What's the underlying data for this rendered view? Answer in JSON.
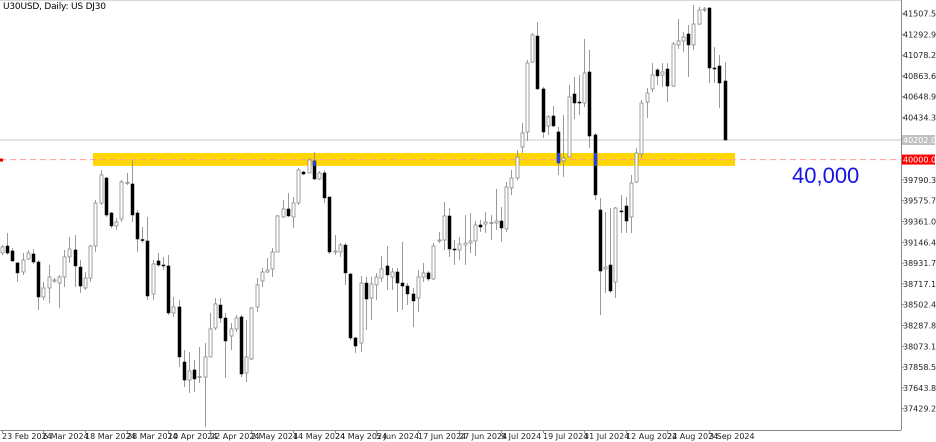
{
  "header": {
    "title": "U30USD, Daily:  US DJ30"
  },
  "annotation": {
    "text": "40,000",
    "color": "#1414e6"
  },
  "colors": {
    "band": "#ffd700",
    "bull_body": "#ffffff",
    "bear_body": "#000000",
    "bear_in_band": "#1e3cff",
    "level_line": "#ff9a9a",
    "current_line": "#c8c8c8",
    "level_label_bg": "#ff0000",
    "current_label_bg": "#c0c0c0"
  },
  "chart_data": {
    "type": "candlestick",
    "symbol": "U30USD",
    "timeframe": "Daily",
    "ylim": [
      37240,
      41620
    ],
    "y_tick_labels": [
      "41507.58",
      "41292.93",
      "41078.28",
      "40863.63",
      "40648.98",
      "40434.33",
      "39790.38",
      "39575.73",
      "39361.08",
      "39146.43",
      "38931.78",
      "38717.13",
      "38502.48",
      "38287.83",
      "38073.18",
      "37858.53",
      "37643.88",
      "37429.23"
    ],
    "x_tick_labels": [
      "23 Feb 2024",
      "6 Mar 2024",
      "18 Mar 2024",
      "28 Mar 2024",
      "10 Apr 2024",
      "22 Apr 2024",
      "2 May 2024",
      "14 May 2024",
      "24 May 2024",
      "5 Jun 2024",
      "17 Jun 2024",
      "27 Jun 2024",
      "9 Jul 2024",
      "19 Jul 2024",
      "31 Jul 2024",
      "12 Aug 2024",
      "22 Aug 2024",
      "3 Sep 2024"
    ],
    "level_line": {
      "value": 40000,
      "label": "40000.00"
    },
    "current_price": {
      "value": 40202,
      "label": "40202.00"
    },
    "zone": {
      "low": 39935,
      "high": 40068
    },
    "ohlc_fields": [
      "open",
      "high",
      "low",
      "close"
    ],
    "ohlc": [
      [
        39036,
        39118,
        39015,
        39098
      ],
      [
        39108,
        39242,
        39015,
        39036
      ],
      [
        39057,
        39087,
        38943,
        38954
      ],
      [
        38933,
        38943,
        38737,
        38830
      ],
      [
        38840,
        39036,
        38809,
        38964
      ],
      [
        38974,
        39067,
        38964,
        39036
      ],
      [
        39026,
        39077,
        38923,
        38943
      ],
      [
        38943,
        38964,
        38448,
        38582
      ],
      [
        38582,
        38737,
        38551,
        38675
      ],
      [
        38675,
        38912,
        38520,
        38788
      ],
      [
        38747,
        38778,
        38726,
        38757
      ],
      [
        38726,
        38809,
        38468,
        38788
      ],
      [
        38788,
        39067,
        38685,
        38995
      ],
      [
        38995,
        39201,
        38933,
        39077
      ],
      [
        39067,
        39222,
        38685,
        38902
      ],
      [
        38891,
        38964,
        38623,
        38695
      ],
      [
        38675,
        38840,
        38654,
        38778
      ],
      [
        38778,
        39118,
        38737,
        39108
      ],
      [
        39108,
        39583,
        39046,
        39552
      ],
      [
        39552,
        39893,
        39531,
        39841
      ],
      [
        39810,
        39820,
        39408,
        39428
      ],
      [
        39449,
        39459,
        39294,
        39315
      ],
      [
        39315,
        39397,
        39273,
        39356
      ],
      [
        39387,
        39789,
        39356,
        39769
      ],
      [
        39755,
        39862,
        39738,
        39765
      ],
      [
        39748,
        39996,
        39356,
        39428
      ],
      [
        39449,
        39480,
        39046,
        39180
      ],
      [
        39175,
        39304,
        39139,
        39165
      ],
      [
        39160,
        39408,
        38551,
        38592
      ],
      [
        38613,
        38964,
        38551,
        38923
      ],
      [
        38954,
        39036,
        38891,
        38912
      ],
      [
        38912,
        38995,
        38861,
        38905
      ],
      [
        38902,
        39015,
        38396,
        38417
      ],
      [
        38417,
        38582,
        38376,
        38479
      ],
      [
        38479,
        38551,
        37860,
        37963
      ],
      [
        37911,
        38035,
        37653,
        37725
      ],
      [
        37725,
        38014,
        37591,
        37818
      ],
      [
        37829,
        37932,
        37602,
        37736
      ],
      [
        37750,
        38066,
        37694,
        37760
      ],
      [
        37756,
        38107,
        37240,
        37963
      ],
      [
        37963,
        38417,
        37963,
        38252
      ],
      [
        38262,
        38571,
        38241,
        38510
      ],
      [
        38499,
        38571,
        38314,
        38365
      ],
      [
        38365,
        38417,
        37746,
        38128
      ],
      [
        38179,
        38314,
        38035,
        38252
      ],
      [
        38252,
        38396,
        38221,
        38365
      ],
      [
        38376,
        38396,
        37756,
        37787
      ],
      [
        37798,
        38344,
        37705,
        37963
      ],
      [
        37942,
        38479,
        37932,
        38468
      ],
      [
        38479,
        38778,
        38427,
        38706
      ],
      [
        38747,
        38881,
        38685,
        38840
      ],
      [
        38840,
        38984,
        38830,
        38861
      ],
      [
        38871,
        39087,
        38788,
        39046
      ],
      [
        39046,
        39428,
        39046,
        39418
      ],
      [
        39408,
        39583,
        39397,
        39490
      ],
      [
        39490,
        39655,
        39408,
        39418
      ],
      [
        39408,
        39614,
        39294,
        39552
      ],
      [
        39552,
        39914,
        39531,
        39893
      ],
      [
        39872,
        39882,
        39841,
        39851
      ],
      [
        39862,
        40016,
        39862,
        39996
      ],
      [
        39986,
        40078,
        39789,
        39800
      ],
      [
        39800,
        39882,
        39789,
        39862
      ],
      [
        39862,
        39893,
        39552,
        39604
      ],
      [
        39614,
        39614,
        39026,
        39046
      ],
      [
        39046,
        39222,
        39015,
        39056
      ],
      [
        39046,
        39139,
        38995,
        39118
      ],
      [
        39118,
        39139,
        38706,
        38830
      ],
      [
        38819,
        38830,
        38138,
        38159
      ],
      [
        38159,
        38169,
        38004,
        38076
      ],
      [
        38107,
        38799,
        38014,
        38726
      ],
      [
        38726,
        38788,
        38241,
        38561
      ],
      [
        38571,
        38788,
        38344,
        38716
      ],
      [
        38706,
        38830,
        38551,
        38788
      ],
      [
        38778,
        39005,
        38737,
        38871
      ],
      [
        38902,
        39108,
        38654,
        38809
      ],
      [
        38788,
        38881,
        38654,
        38840
      ],
      [
        38840,
        38881,
        38427,
        38726
      ],
      [
        38726,
        39149,
        38448,
        38695
      ],
      [
        38695,
        38726,
        38499,
        38613
      ],
      [
        38613,
        38675,
        38272,
        38541
      ],
      [
        38571,
        38861,
        38427,
        38788
      ],
      [
        38788,
        38933,
        38737,
        38830
      ],
      [
        38830,
        38850,
        38747,
        38768
      ],
      [
        38768,
        39139,
        38757,
        39108
      ],
      [
        39160,
        39253,
        39139,
        39170
      ],
      [
        39170,
        39562,
        39067,
        39418
      ],
      [
        39418,
        39500,
        38995,
        39077
      ],
      [
        39077,
        39170,
        38912,
        39067
      ],
      [
        39067,
        39201,
        38964,
        39129
      ],
      [
        39118,
        39428,
        38912,
        39139
      ],
      [
        39139,
        39449,
        39036,
        39160
      ],
      [
        39160,
        39366,
        39005,
        39325
      ],
      [
        39325,
        39377,
        39253,
        39304
      ],
      [
        39335,
        39459,
        39242,
        39356
      ],
      [
        39346,
        39428,
        39170,
        39351
      ],
      [
        39346,
        39696,
        39273,
        39366
      ],
      [
        39366,
        39511,
        39149,
        39294
      ],
      [
        39284,
        39769,
        39253,
        39717
      ],
      [
        39707,
        39893,
        39635,
        39810
      ],
      [
        39810,
        40099,
        39789,
        40027
      ],
      [
        40130,
        40378,
        40068,
        40274
      ],
      [
        40285,
        41028,
        40192,
        40997
      ],
      [
        41007,
        41306,
        40997,
        41286
      ],
      [
        41275,
        41420,
        40718,
        40729
      ],
      [
        40729,
        40749,
        40223,
        40285
      ],
      [
        40347,
        40460,
        40254,
        40440
      ],
      [
        40450,
        40553,
        40336,
        40347
      ],
      [
        40285,
        40336,
        39841,
        39965
      ],
      [
        39986,
        40460,
        39820,
        40016
      ],
      [
        40027,
        40770,
        40027,
        40646
      ],
      [
        40677,
        40852,
        40419,
        40584
      ],
      [
        40594,
        40873,
        40460,
        40590
      ],
      [
        40584,
        41244,
        40543,
        40894
      ],
      [
        40904,
        41131,
        40120,
        40243
      ],
      [
        40254,
        40274,
        39583,
        39635
      ],
      [
        39480,
        39604,
        38396,
        38850
      ],
      [
        38871,
        39459,
        38623,
        38891
      ],
      [
        38912,
        39500,
        38623,
        38644
      ],
      [
        38737,
        39511,
        38571,
        39500
      ],
      [
        39470,
        39635,
        39242,
        39465
      ],
      [
        39521,
        39614,
        39242,
        39366
      ],
      [
        39408,
        39841,
        39242,
        39758
      ],
      [
        39769,
        40120,
        39758,
        40068
      ],
      [
        40058,
        40615,
        40016,
        40584
      ],
      [
        40594,
        40739,
        40429,
        40687
      ],
      [
        40729,
        40997,
        40698,
        40873
      ],
      [
        40925,
        40945,
        40770,
        40863
      ],
      [
        40873,
        40997,
        40749,
        40904
      ],
      [
        40935,
        40997,
        40594,
        40759
      ],
      [
        40759,
        41213,
        40749,
        41193
      ],
      [
        41183,
        41451,
        41141,
        41224
      ],
      [
        41224,
        41317,
        41110,
        41265
      ],
      [
        41296,
        41389,
        40852,
        41183
      ],
      [
        41183,
        41595,
        41131,
        41399
      ],
      [
        41399,
        41575,
        41389,
        41544
      ],
      [
        41549,
        41575,
        41523,
        41554
      ],
      [
        41564,
        41575,
        40790,
        40945
      ],
      [
        40945,
        41162,
        40790,
        40940
      ],
      [
        40966,
        41079,
        40532,
        40790
      ],
      [
        40811,
        41007,
        40202,
        40202
      ]
    ]
  }
}
